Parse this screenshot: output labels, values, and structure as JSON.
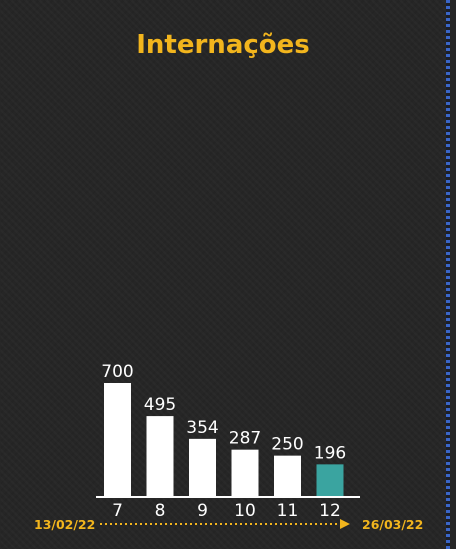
{
  "chart_data": {
    "type": "bar",
    "title": "Internações",
    "categories": [
      "7",
      "8",
      "9",
      "10",
      "11",
      "12"
    ],
    "values": [
      700,
      495,
      354,
      287,
      250,
      196
    ],
    "highlight_index": 5,
    "colors": {
      "bar": "#ffffff",
      "highlight": "#3aa4a0",
      "title": "#f2b51d",
      "background": "#262626"
    },
    "start_date": "13/02/22",
    "end_date": "26/03/22",
    "grid": false
  }
}
